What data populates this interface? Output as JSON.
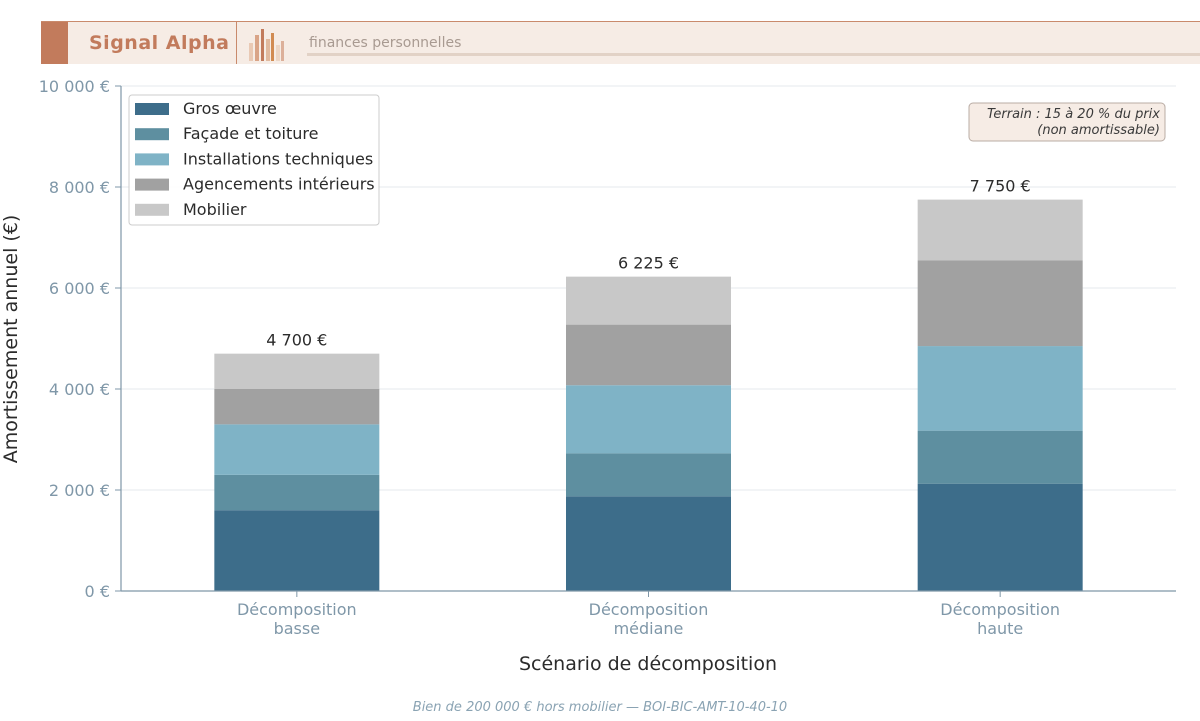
{
  "header": {
    "brand": "Signal Alpha",
    "subtitle": "finances personnelles"
  },
  "footer": {
    "note": "Bien de 200 000 € hors mobilier — BOI-BIC-AMT-10-40-10"
  },
  "chart_data": {
    "type": "bar",
    "stacked": true,
    "title": "",
    "xlabel": "Scénario de décomposition",
    "ylabel": "Amortissement annuel (€)",
    "ylim": [
      0,
      10000
    ],
    "yticks": [
      0,
      2000,
      4000,
      6000,
      8000,
      10000
    ],
    "ytick_labels": [
      "0 €",
      "2 000 €",
      "4 000 €",
      "6 000 €",
      "8 000 €",
      "10 000 €"
    ],
    "grid": true,
    "legend_position": "top-left",
    "categories": [
      [
        "Décomposition",
        "basse"
      ],
      [
        "Décomposition",
        "médiane"
      ],
      [
        "Décomposition",
        "haute"
      ]
    ],
    "series": [
      {
        "name": "Gros œuvre",
        "color": "#3d6d8a",
        "values": [
          1600,
          1875,
          2125
        ]
      },
      {
        "name": "Façade et toiture",
        "color": "#5e8fa0",
        "values": [
          700,
          850,
          1050
        ]
      },
      {
        "name": "Installations techniques",
        "color": "#7fb3c6",
        "values": [
          1000,
          1350,
          1675
        ]
      },
      {
        "name": "Agencements intérieurs",
        "color": "#a1a1a1",
        "values": [
          700,
          1200,
          1700
        ]
      },
      {
        "name": "Mobilier",
        "color": "#c8c8c8",
        "values": [
          700,
          950,
          1200
        ]
      }
    ],
    "totals": [
      4700,
      6225,
      7750
    ],
    "total_labels": [
      "4 700 €",
      "6 225 €",
      "7 750 €"
    ],
    "annotation": {
      "lines": [
        "Terrain : 15 à 20 % du prix",
        "(non amortissable)"
      ],
      "position": "top-right"
    }
  }
}
